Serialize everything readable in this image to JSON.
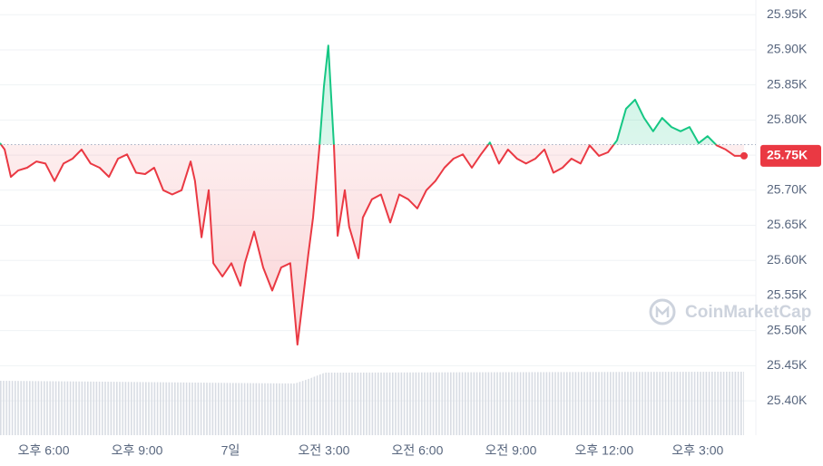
{
  "chart_data": {
    "type": "line",
    "watermark": "CoinMarketCap",
    "xlim": [
      16.6,
      40.49
    ],
    "xticks": [
      {
        "value": 18,
        "label": "오후 6:00"
      },
      {
        "value": 21,
        "label": "오후 9:00"
      },
      {
        "value": 24,
        "label": "7일"
      },
      {
        "value": 27,
        "label": "오전 3:00"
      },
      {
        "value": 30,
        "label": "오전 6:00"
      },
      {
        "value": 33,
        "label": "오전 9:00"
      },
      {
        "value": 36,
        "label": "오후 12:00"
      },
      {
        "value": 39,
        "label": "오후 3:00"
      }
    ],
    "ylim": [
      25.351,
      25.971
    ],
    "yticks": [
      {
        "value": 25.95,
        "label": "25.95K"
      },
      {
        "value": 25.9,
        "label": "25.90K"
      },
      {
        "value": 25.85,
        "label": "25.85K"
      },
      {
        "value": 25.8,
        "label": "25.80K"
      },
      {
        "value": 25.75,
        "label": "25.75K"
      },
      {
        "value": 25.7,
        "label": "25.70K"
      },
      {
        "value": 25.65,
        "label": "25.65K"
      },
      {
        "value": 25.6,
        "label": "25.60K"
      },
      {
        "value": 25.55,
        "label": "25.55K"
      },
      {
        "value": 25.5,
        "label": "25.50K"
      },
      {
        "value": 25.45,
        "label": "25.45K"
      },
      {
        "value": 25.4,
        "label": "25.40K"
      }
    ],
    "grid": true,
    "baseline": 25.765,
    "color_up": "#16c784",
    "color_down": "#ea3943",
    "current_price_label": "25.75K",
    "x": [
      16.6,
      16.75,
      16.95,
      17.18,
      17.47,
      17.77,
      18.06,
      18.35,
      18.64,
      18.93,
      19.22,
      19.51,
      19.8,
      20.1,
      20.39,
      20.68,
      20.97,
      21.26,
      21.55,
      21.84,
      22.13,
      22.43,
      22.72,
      22.86,
      23.07,
      23.3,
      23.45,
      23.74,
      24.03,
      24.32,
      24.46,
      24.76,
      25.05,
      25.34,
      25.63,
      25.92,
      26.15,
      26.36,
      26.5,
      26.65,
      26.85,
      27.0,
      27.14,
      27.32,
      27.44,
      27.67,
      27.81,
      28.11,
      28.25,
      28.54,
      28.83,
      29.13,
      29.42,
      29.71,
      30.0,
      30.29,
      30.58,
      30.87,
      31.16,
      31.46,
      31.75,
      32.04,
      32.33,
      32.62,
      32.91,
      33.2,
      33.49,
      33.79,
      34.08,
      34.37,
      34.66,
      34.95,
      35.24,
      35.53,
      35.83,
      36.12,
      36.41,
      36.7,
      36.99,
      37.28,
      37.57,
      37.86,
      38.16,
      38.45,
      38.74,
      39.03,
      39.32,
      39.61,
      39.9,
      40.19,
      40.49
    ],
    "values": [
      25.767,
      25.758,
      25.719,
      25.728,
      25.732,
      25.741,
      25.738,
      25.713,
      25.738,
      25.745,
      25.758,
      25.738,
      25.732,
      25.719,
      25.745,
      25.751,
      25.725,
      25.723,
      25.732,
      25.7,
      25.694,
      25.7,
      25.741,
      25.713,
      25.633,
      25.7,
      25.596,
      25.577,
      25.596,
      25.564,
      25.596,
      25.641,
      25.59,
      25.557,
      25.59,
      25.596,
      25.48,
      25.557,
      25.609,
      25.661,
      25.758,
      25.848,
      25.906,
      25.764,
      25.635,
      25.7,
      25.648,
      25.603,
      25.661,
      25.687,
      25.694,
      25.654,
      25.694,
      25.687,
      25.674,
      25.7,
      25.713,
      25.732,
      25.745,
      25.751,
      25.732,
      25.751,
      25.768,
      25.738,
      25.758,
      25.745,
      25.738,
      25.745,
      25.758,
      25.725,
      25.732,
      25.745,
      25.738,
      25.764,
      25.749,
      25.754,
      25.771,
      25.816,
      25.829,
      25.803,
      25.784,
      25.803,
      25.79,
      25.784,
      25.79,
      25.767,
      25.777,
      25.764,
      25.758,
      25.749,
      25.749
    ]
  }
}
